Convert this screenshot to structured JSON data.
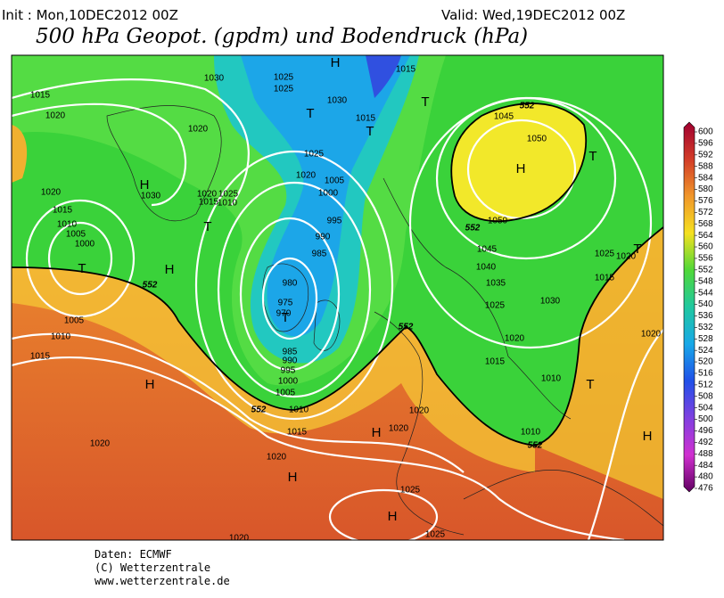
{
  "header": {
    "init": "Init : Mon,10DEC2012 00Z",
    "valid": "Valid: Wed,19DEC2012 00Z",
    "title": "500 hPa Geopot. (gpdm) und Bodendruck (hPa)"
  },
  "map": {
    "pressure_labels": [
      "1015",
      "1020",
      "1020",
      "1015",
      "1010",
      "1005",
      "1000",
      "1005",
      "1010",
      "1015",
      "1030",
      "1025",
      "1025",
      "1030",
      "1025",
      "1020",
      "1005",
      "1000",
      "995",
      "990",
      "985",
      "980",
      "975",
      "970",
      "985",
      "990",
      "995",
      "1000",
      "1005",
      "1010",
      "1015",
      "1020",
      "1020",
      "1020",
      "1020",
      "1025",
      "1025",
      "1020",
      "1015",
      "1015",
      "1030",
      "1020",
      "1015",
      "1025",
      "1010",
      "1045",
      "1050",
      "1050",
      "1045",
      "1040",
      "1035",
      "1030",
      "1025",
      "1020",
      "1015",
      "1010",
      "1010",
      "1025",
      "1020",
      "1015",
      "1020",
      "1020"
    ],
    "height_labels": [
      "552",
      "552",
      "552",
      "552",
      "552",
      "552"
    ],
    "centers": [
      "T",
      "T",
      "T",
      "T",
      "T",
      "T",
      "T",
      "T",
      "T",
      "H",
      "H",
      "H",
      "H",
      "H",
      "H",
      "H",
      "H",
      "H"
    ]
  },
  "colorbar": {
    "ticks": [
      600,
      596,
      592,
      588,
      584,
      580,
      576,
      572,
      568,
      564,
      560,
      556,
      552,
      548,
      544,
      540,
      536,
      532,
      528,
      524,
      520,
      516,
      512,
      508,
      504,
      500,
      496,
      492,
      488,
      484,
      480,
      476
    ]
  },
  "footer": {
    "lines": [
      "Daten: ECMWF",
      "(C) Wetterzentrale",
      "www.wetterzentrale.de"
    ]
  }
}
